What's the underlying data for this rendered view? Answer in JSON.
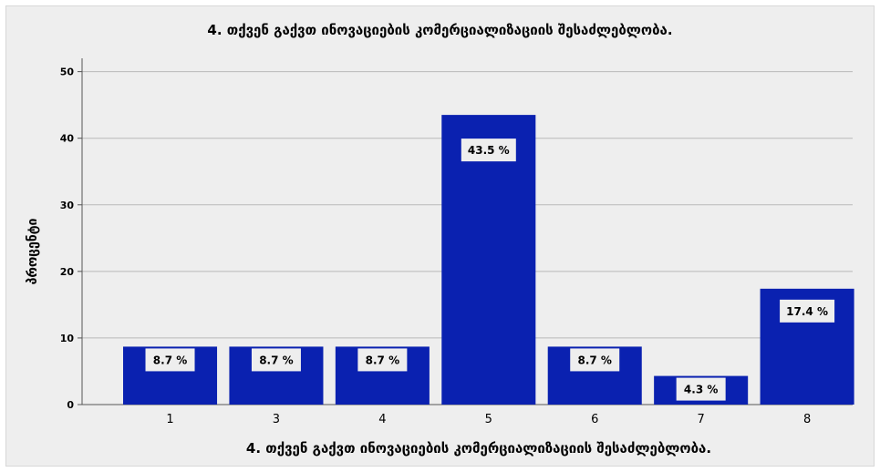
{
  "chart_data": {
    "type": "bar",
    "title": "4. თქვენ გაქვთ ინოვაციების კომერციალიზაციის შესაძლებლობა.",
    "xlabel": "4. თქვენ გაქვთ ინოვაციების კომერციალიზაციის შესაძლებლობა.",
    "ylabel": "პროცენტი",
    "categories": [
      "1",
      "3",
      "4",
      "5",
      "6",
      "7",
      "8"
    ],
    "values": [
      8.7,
      8.7,
      8.7,
      43.5,
      8.7,
      4.3,
      17.4
    ],
    "data_labels": [
      "8.7 %",
      "8.7 %",
      "8.7 %",
      "43.5 %",
      "8.7 %",
      "4.3 %",
      "17.4 %"
    ],
    "ylim": [
      0,
      52
    ],
    "yticks": [
      0,
      10,
      20,
      30,
      40,
      50
    ],
    "grid": true,
    "legend": "none",
    "colors": {
      "bar": "#0a21b0",
      "background": "#eeeeee",
      "grid": "#b9b9b9",
      "axis": "#555555",
      "label_box": "#eeeeee"
    }
  }
}
